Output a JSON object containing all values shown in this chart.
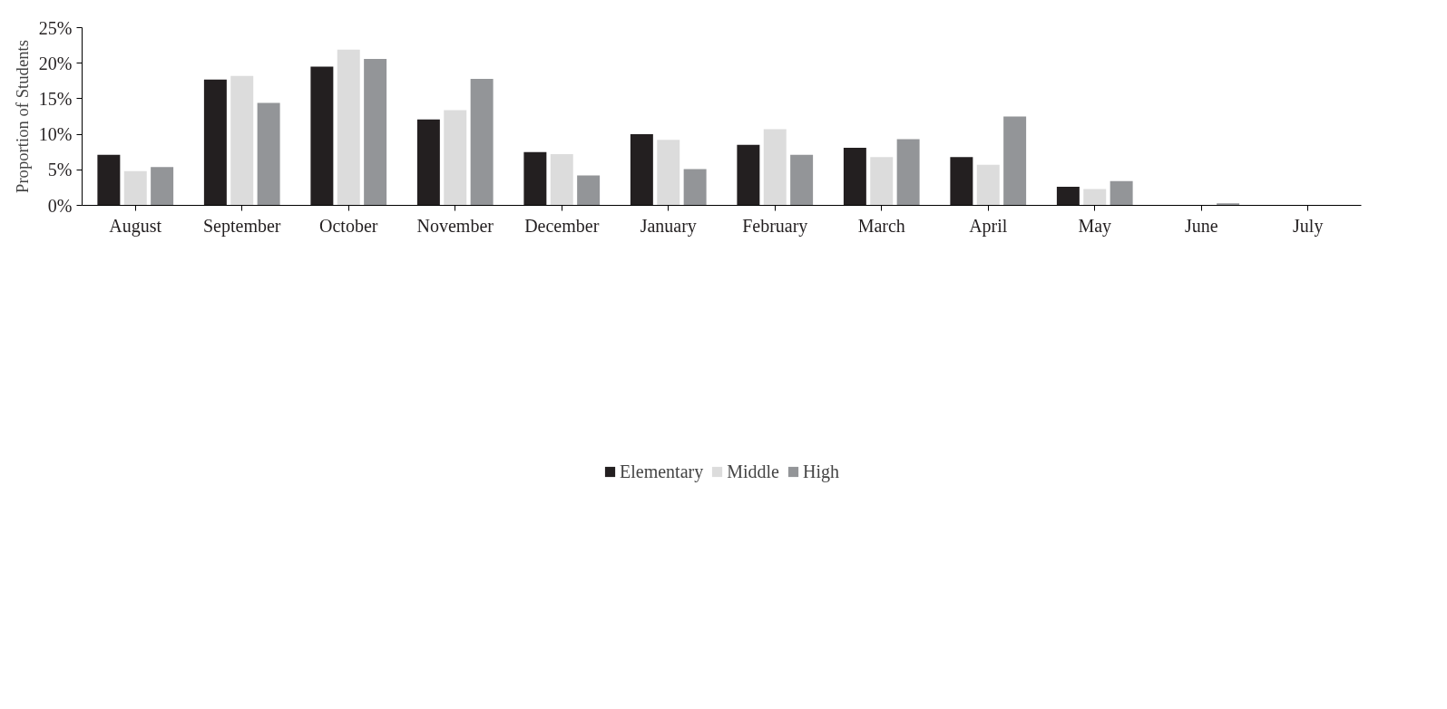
{
  "chart_data": {
    "type": "bar",
    "ylabel": "Proportion of Students",
    "categories": [
      "August",
      "September",
      "October",
      "November",
      "December",
      "January",
      "February",
      "March",
      "April",
      "May",
      "June",
      "July"
    ],
    "series": [
      {
        "name": "Elementary",
        "color": "#231f20",
        "values": [
          7.1,
          17.7,
          19.5,
          12.1,
          7.5,
          10.0,
          8.5,
          8.1,
          6.8,
          2.6,
          0,
          0
        ]
      },
      {
        "name": "Middle",
        "color": "#dcdcdc",
        "values": [
          4.8,
          18.2,
          21.9,
          13.4,
          7.2,
          9.2,
          10.7,
          6.8,
          5.7,
          2.3,
          0,
          0
        ]
      },
      {
        "name": "High",
        "color": "#939598",
        "values": [
          5.4,
          14.4,
          20.6,
          17.8,
          4.2,
          5.1,
          7.1,
          9.3,
          12.5,
          3.4,
          0.3,
          0
        ]
      }
    ],
    "ylim": [
      0,
      25
    ],
    "yticks": [
      {
        "value": 0,
        "label": "0%"
      },
      {
        "value": 5,
        "label": "5%"
      },
      {
        "value": 10,
        "label": "10%"
      },
      {
        "value": 15,
        "label": "15%"
      },
      {
        "value": 20,
        "label": "20%"
      },
      {
        "value": 25,
        "label": "25%"
      }
    ],
    "grid": false,
    "legend": "bottom"
  }
}
